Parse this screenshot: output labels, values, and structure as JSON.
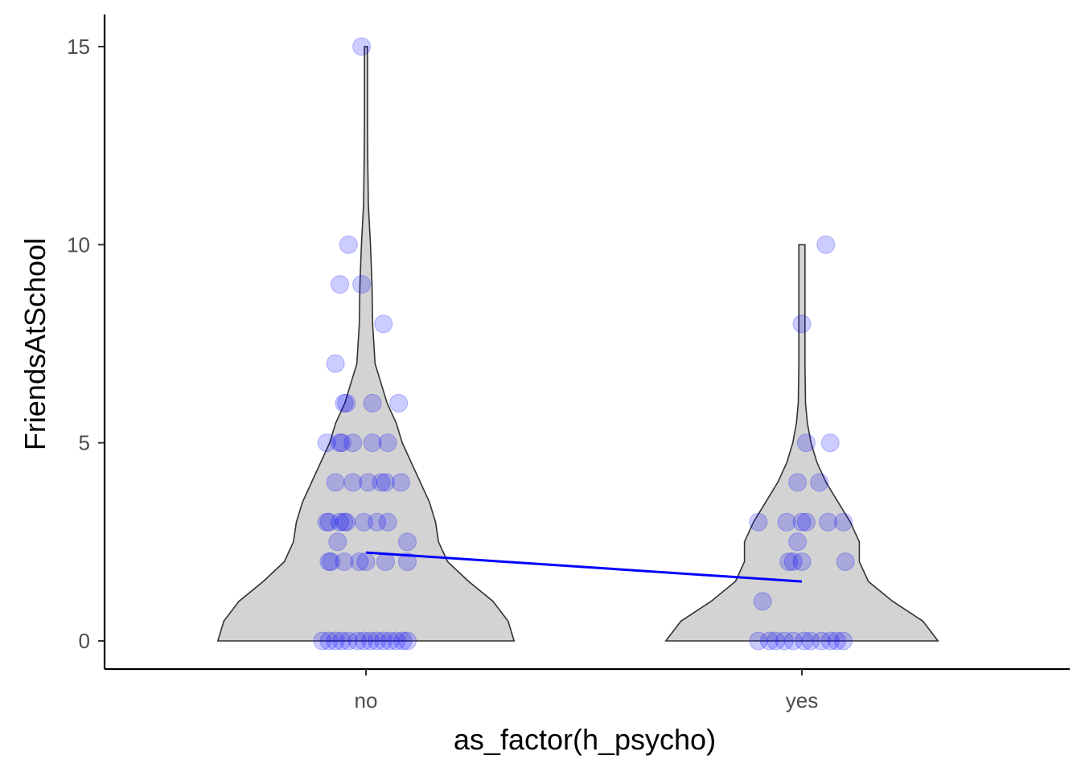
{
  "chart_data": {
    "type": "violin",
    "xlabel": "as_factor(h_psycho)",
    "ylabel": "FriendsAtSchool",
    "categories": [
      "no",
      "yes"
    ],
    "ylim": [
      -1.5,
      16
    ],
    "yticks": [
      0,
      5,
      10,
      15
    ],
    "grid": false,
    "legend": "none",
    "colors": {
      "violin_fill": "#d3d3d3",
      "violin_stroke": "#333333",
      "points": "#0000ff",
      "mean_line": "#0000ff",
      "axis": "#000000"
    },
    "violins": [
      {
        "category": "no",
        "profile": [
          [
            0,
            0.49
          ],
          [
            0.5,
            0.47
          ],
          [
            1,
            0.42
          ],
          [
            1.5,
            0.34
          ],
          [
            2,
            0.27
          ],
          [
            2.5,
            0.24
          ],
          [
            3,
            0.23
          ],
          [
            3.5,
            0.21
          ],
          [
            4,
            0.18
          ],
          [
            4.5,
            0.15
          ],
          [
            5,
            0.12
          ],
          [
            5.5,
            0.1
          ],
          [
            6,
            0.07
          ],
          [
            6.5,
            0.05
          ],
          [
            7,
            0.03
          ],
          [
            8,
            0.022
          ],
          [
            9,
            0.02
          ],
          [
            10,
            0.015
          ],
          [
            11,
            0.008
          ],
          [
            12,
            0.006
          ],
          [
            13,
            0.005
          ],
          [
            14,
            0.005
          ],
          [
            15,
            0.005
          ]
        ]
      },
      {
        "category": "yes",
        "profile": [
          [
            0,
            0.45
          ],
          [
            0.5,
            0.4
          ],
          [
            1,
            0.3
          ],
          [
            1.5,
            0.22
          ],
          [
            2,
            0.19
          ],
          [
            2.5,
            0.19
          ],
          [
            3,
            0.16
          ],
          [
            3.5,
            0.12
          ],
          [
            4,
            0.08
          ],
          [
            4.5,
            0.05
          ],
          [
            5,
            0.03
          ],
          [
            5.5,
            0.018
          ],
          [
            6,
            0.012
          ],
          [
            7,
            0.01
          ],
          [
            8,
            0.01
          ],
          [
            9,
            0.01
          ],
          [
            10,
            0.01
          ]
        ]
      }
    ],
    "points": [
      {
        "category": "no",
        "jitter": -0.01,
        "value": 15
      },
      {
        "category": "no",
        "jitter": -0.04,
        "value": 10
      },
      {
        "category": "no",
        "jitter": -0.06,
        "value": 9
      },
      {
        "category": "no",
        "jitter": -0.01,
        "value": 9
      },
      {
        "category": "no",
        "jitter": 0.04,
        "value": 8
      },
      {
        "category": "no",
        "jitter": -0.07,
        "value": 7
      },
      {
        "category": "no",
        "jitter": -0.05,
        "value": 6
      },
      {
        "category": "no",
        "jitter": -0.045,
        "value": 6
      },
      {
        "category": "no",
        "jitter": 0.015,
        "value": 6
      },
      {
        "category": "no",
        "jitter": 0.075,
        "value": 6
      },
      {
        "category": "no",
        "jitter": -0.09,
        "value": 5
      },
      {
        "category": "no",
        "jitter": -0.06,
        "value": 5
      },
      {
        "category": "no",
        "jitter": -0.055,
        "value": 5
      },
      {
        "category": "no",
        "jitter": -0.03,
        "value": 5
      },
      {
        "category": "no",
        "jitter": 0.015,
        "value": 5
      },
      {
        "category": "no",
        "jitter": 0.05,
        "value": 5
      },
      {
        "category": "no",
        "jitter": -0.07,
        "value": 4
      },
      {
        "category": "no",
        "jitter": -0.03,
        "value": 4
      },
      {
        "category": "no",
        "jitter": 0.005,
        "value": 4
      },
      {
        "category": "no",
        "jitter": 0.035,
        "value": 4
      },
      {
        "category": "no",
        "jitter": 0.045,
        "value": 4
      },
      {
        "category": "no",
        "jitter": 0.08,
        "value": 4
      },
      {
        "category": "no",
        "jitter": -0.09,
        "value": 3
      },
      {
        "category": "no",
        "jitter": -0.085,
        "value": 3
      },
      {
        "category": "no",
        "jitter": -0.06,
        "value": 3
      },
      {
        "category": "no",
        "jitter": -0.05,
        "value": 3
      },
      {
        "category": "no",
        "jitter": -0.045,
        "value": 3
      },
      {
        "category": "no",
        "jitter": -0.005,
        "value": 3
      },
      {
        "category": "no",
        "jitter": 0.025,
        "value": 3
      },
      {
        "category": "no",
        "jitter": 0.05,
        "value": 3
      },
      {
        "category": "no",
        "jitter": -0.065,
        "value": 2.5
      },
      {
        "category": "no",
        "jitter": 0.095,
        "value": 2.5
      },
      {
        "category": "no",
        "jitter": -0.085,
        "value": 2
      },
      {
        "category": "no",
        "jitter": -0.08,
        "value": 2
      },
      {
        "category": "no",
        "jitter": -0.05,
        "value": 2
      },
      {
        "category": "no",
        "jitter": -0.015,
        "value": 2
      },
      {
        "category": "no",
        "jitter": 0.0,
        "value": 2
      },
      {
        "category": "no",
        "jitter": 0.045,
        "value": 2
      },
      {
        "category": "no",
        "jitter": 0.095,
        "value": 2
      },
      {
        "category": "no",
        "jitter": -0.1,
        "value": 0
      },
      {
        "category": "no",
        "jitter": -0.085,
        "value": 0
      },
      {
        "category": "no",
        "jitter": -0.07,
        "value": 0
      },
      {
        "category": "no",
        "jitter": -0.055,
        "value": 0
      },
      {
        "category": "no",
        "jitter": -0.04,
        "value": 0
      },
      {
        "category": "no",
        "jitter": -0.02,
        "value": 0
      },
      {
        "category": "no",
        "jitter": -0.005,
        "value": 0
      },
      {
        "category": "no",
        "jitter": 0.01,
        "value": 0
      },
      {
        "category": "no",
        "jitter": 0.025,
        "value": 0
      },
      {
        "category": "no",
        "jitter": 0.04,
        "value": 0
      },
      {
        "category": "no",
        "jitter": 0.055,
        "value": 0
      },
      {
        "category": "no",
        "jitter": 0.07,
        "value": 0
      },
      {
        "category": "no",
        "jitter": 0.085,
        "value": 0
      },
      {
        "category": "no",
        "jitter": 0.095,
        "value": 0
      },
      {
        "category": "yes",
        "jitter": 0.055,
        "value": 10
      },
      {
        "category": "yes",
        "jitter": 0.0,
        "value": 8
      },
      {
        "category": "yes",
        "jitter": 0.01,
        "value": 5
      },
      {
        "category": "yes",
        "jitter": 0.065,
        "value": 5
      },
      {
        "category": "yes",
        "jitter": -0.01,
        "value": 4
      },
      {
        "category": "yes",
        "jitter": 0.04,
        "value": 4
      },
      {
        "category": "yes",
        "jitter": -0.1,
        "value": 3
      },
      {
        "category": "yes",
        "jitter": -0.035,
        "value": 3
      },
      {
        "category": "yes",
        "jitter": 0.0,
        "value": 3
      },
      {
        "category": "yes",
        "jitter": 0.01,
        "value": 3
      },
      {
        "category": "yes",
        "jitter": 0.06,
        "value": 3
      },
      {
        "category": "yes",
        "jitter": 0.095,
        "value": 3
      },
      {
        "category": "yes",
        "jitter": -0.01,
        "value": 2.5
      },
      {
        "category": "yes",
        "jitter": -0.03,
        "value": 2
      },
      {
        "category": "yes",
        "jitter": -0.02,
        "value": 2
      },
      {
        "category": "yes",
        "jitter": 0.0,
        "value": 2
      },
      {
        "category": "yes",
        "jitter": 0.1,
        "value": 2
      },
      {
        "category": "yes",
        "jitter": -0.09,
        "value": 1
      },
      {
        "category": "yes",
        "jitter": -0.1,
        "value": 0
      },
      {
        "category": "yes",
        "jitter": -0.075,
        "value": 0
      },
      {
        "category": "yes",
        "jitter": -0.06,
        "value": 0
      },
      {
        "category": "yes",
        "jitter": -0.04,
        "value": 0
      },
      {
        "category": "yes",
        "jitter": -0.02,
        "value": 0
      },
      {
        "category": "yes",
        "jitter": 0.005,
        "value": 0
      },
      {
        "category": "yes",
        "jitter": 0.02,
        "value": 0
      },
      {
        "category": "yes",
        "jitter": 0.045,
        "value": 0
      },
      {
        "category": "yes",
        "jitter": 0.065,
        "value": 0
      },
      {
        "category": "yes",
        "jitter": 0.08,
        "value": 0
      },
      {
        "category": "yes",
        "jitter": 0.095,
        "value": 0
      }
    ],
    "mean_line": [
      {
        "category": "no",
        "value": 2.23
      },
      {
        "category": "yes",
        "value": 1.5
      }
    ]
  }
}
